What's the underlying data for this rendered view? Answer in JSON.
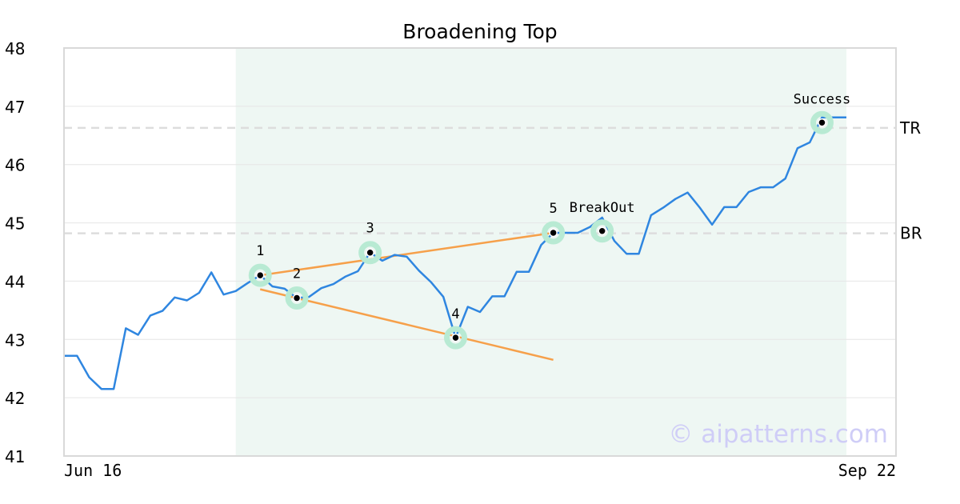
{
  "chart_data": {
    "type": "line",
    "title": "Broadening Top",
    "xlabel": "",
    "ylabel": "",
    "ylim": [
      41,
      48
    ],
    "y_ticks": [
      41,
      42,
      43,
      44,
      45,
      46,
      47,
      48
    ],
    "x_tick_labels": [
      "Jun 16",
      "Sep 22"
    ],
    "grid": true,
    "legend": "none",
    "colors": {
      "price_line": "#2f86e0",
      "trend_lines": "#f6a04a",
      "pattern_band": "#eef7f3",
      "marker_halo": "#b8ead3",
      "level_lines": "#dddddd",
      "watermark": "#cfcdf7"
    },
    "series": [
      {
        "values": [
          42.72,
          42.72,
          42.35,
          42.15,
          42.15,
          43.19,
          43.08,
          43.41,
          43.49,
          43.72,
          43.67,
          43.8,
          44.15,
          43.77,
          43.83,
          43.97,
          44.1,
          43.91,
          43.87,
          43.71,
          43.73,
          43.88,
          43.95,
          44.08,
          44.17,
          44.49,
          44.35,
          44.45,
          44.42,
          44.18,
          43.98,
          43.73,
          43.03,
          43.56,
          43.47,
          43.74,
          43.74,
          44.16,
          44.16,
          44.62,
          44.83,
          44.83,
          44.83,
          44.93,
          45.09,
          44.69,
          44.47,
          44.47,
          45.13,
          45.26,
          45.41,
          45.52,
          45.26,
          44.97,
          45.27,
          45.27,
          45.53,
          45.61,
          45.61,
          45.76,
          46.28,
          46.38,
          46.81,
          46.81,
          46.81
        ]
      }
    ],
    "trend_lines": [
      {
        "from": [
          16,
          44.1
        ],
        "to": [
          40,
          44.83
        ]
      },
      {
        "from": [
          16,
          43.86
        ],
        "to": [
          40,
          42.65
        ]
      }
    ],
    "pattern_range": [
      14,
      64
    ],
    "levels": [
      {
        "label": "TR",
        "value": 46.63
      },
      {
        "label": "BR",
        "value": 44.82
      }
    ],
    "points": [
      {
        "label": "1",
        "x": 16,
        "y": 44.1
      },
      {
        "label": "2",
        "x": 19,
        "y": 43.71
      },
      {
        "label": "3",
        "x": 25,
        "y": 44.49
      },
      {
        "label": "4",
        "x": 32,
        "y": 43.03
      },
      {
        "label": "5",
        "x": 40,
        "y": 44.83
      },
      {
        "label": "BreakOut",
        "x": 44,
        "y": 44.86
      },
      {
        "label": "Success",
        "x": 62,
        "y": 46.72
      }
    ],
    "watermark": "© aipatterns.com"
  }
}
